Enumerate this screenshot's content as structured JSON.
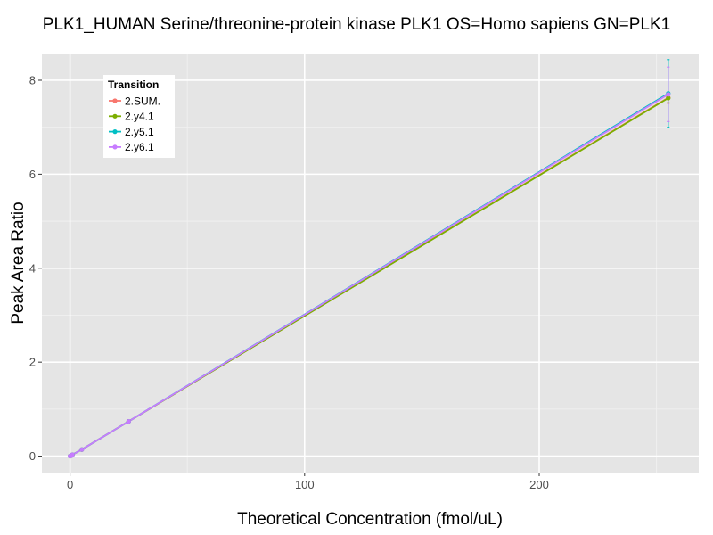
{
  "chart_data": {
    "type": "line",
    "title": "PLK1_HUMAN Serine/threonine-protein kinase PLK1 OS=Homo sapiens GN=PLK1",
    "xlabel": "Theoretical Concentration (fmol/uL)",
    "ylabel": "Peak Area Ratio",
    "xlim": [
      -12,
      268
    ],
    "ylim": [
      -0.35,
      8.55
    ],
    "xticks": [
      0,
      100,
      200
    ],
    "yticks": [
      0,
      2,
      4,
      6,
      8
    ],
    "grid": true,
    "legend": {
      "title": "Transition",
      "position": "top-left"
    },
    "x": [
      0,
      0.5,
      1,
      5,
      25,
      255
    ],
    "series": [
      {
        "name": "2.SUM.",
        "color": "#F8766D",
        "values": [
          0,
          0.01,
          0.03,
          0.14,
          0.74,
          7.63
        ],
        "err": [
          0,
          0,
          0,
          0.01,
          0.02,
          0.12
        ]
      },
      {
        "name": "2.y4.1",
        "color": "#7CAE00",
        "values": [
          0,
          0.01,
          0.03,
          0.14,
          0.74,
          7.62
        ],
        "err": [
          0,
          0,
          0,
          0.01,
          0.02,
          0.1
        ]
      },
      {
        "name": "2.y5.1",
        "color": "#00BFC4",
        "values": [
          0,
          0.01,
          0.03,
          0.14,
          0.74,
          7.72
        ],
        "err": [
          0,
          0,
          0,
          0.01,
          0.02,
          0.72
        ]
      },
      {
        "name": "2.y6.1",
        "color": "#C77CFF",
        "values": [
          0,
          0.01,
          0.03,
          0.14,
          0.74,
          7.7
        ],
        "err": [
          0,
          0,
          0,
          0.01,
          0.02,
          0.58
        ]
      }
    ]
  }
}
